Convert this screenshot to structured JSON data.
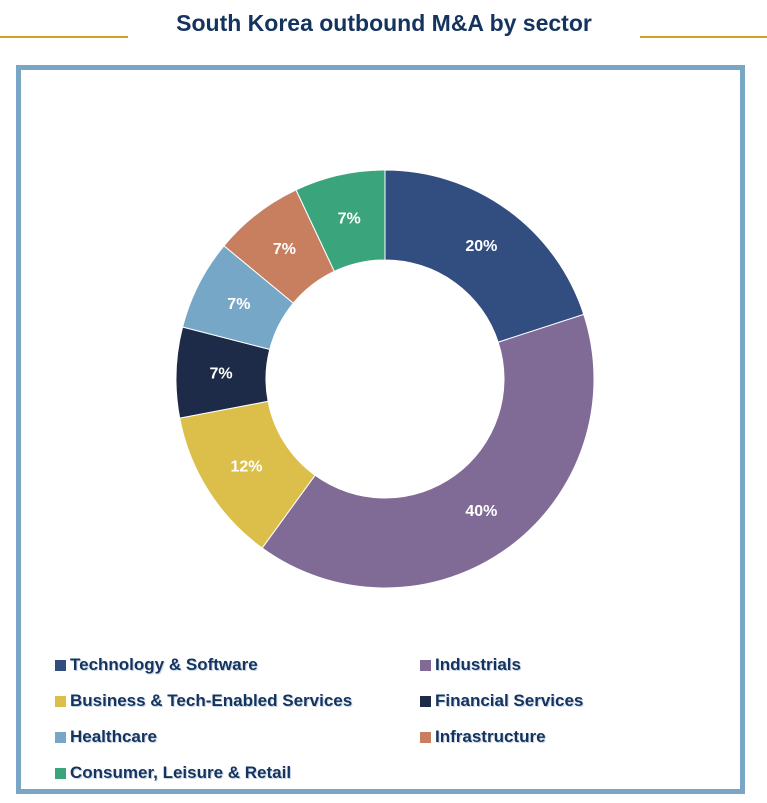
{
  "chart_data": {
    "type": "pie",
    "title": "South Korea outbound M&A by sector",
    "donut": true,
    "legend_position": "bottom",
    "categories": [
      "Technology & Software",
      "Industrials",
      "Business & Tech-Enabled Services",
      "Financial Services",
      "Healthcare",
      "Infrastructure",
      "Consumer, Leisure & Retail"
    ],
    "values": [
      20,
      40,
      12,
      7,
      7,
      7,
      7
    ],
    "data_labels": [
      "20%",
      "40%",
      "12%",
      "7%",
      "7%",
      "7%",
      "7%"
    ],
    "colors": [
      "#324d80",
      "#806a96",
      "#dcbf4a",
      "#1e2b48",
      "#76a7c7",
      "#c77f60",
      "#3aa57c"
    ]
  }
}
